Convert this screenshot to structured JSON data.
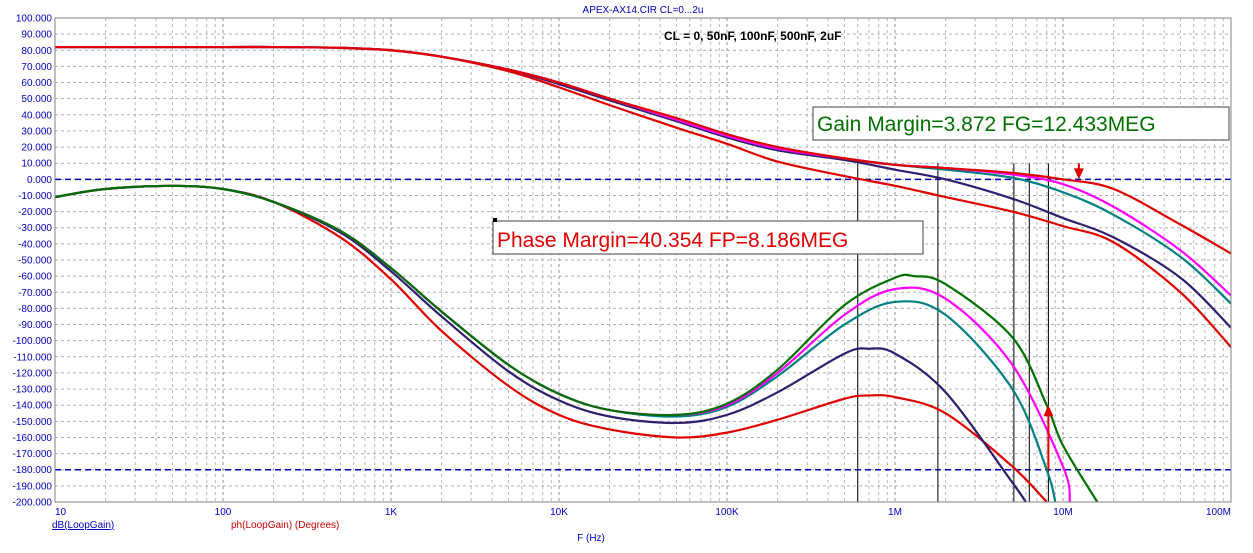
{
  "window": {
    "title": "APEX-AX14.CIR CL=0...2u"
  },
  "chart_data": {
    "type": "line",
    "title": "APEX-AX14.CIR CL=0...2u",
    "subtitle": "CL = 0, 50nF, 100nF, 500nF, 2uF",
    "xlabel": "F (Hz)",
    "x_scale": "log",
    "xlim": [
      10,
      100000000
    ],
    "ylim": [
      -200,
      100
    ],
    "x_ticks": [
      {
        "v": 10,
        "label": "10"
      },
      {
        "v": 100,
        "label": "100"
      },
      {
        "v": 1000,
        "label": "1K"
      },
      {
        "v": 10000,
        "label": "10K"
      },
      {
        "v": 100000,
        "label": "100K"
      },
      {
        "v": 1000000,
        "label": "1M"
      },
      {
        "v": 10000000,
        "label": "10M"
      },
      {
        "v": 100000000,
        "label": "100M"
      }
    ],
    "y_ticks": [
      {
        "v": 100,
        "label": "100.000"
      },
      {
        "v": 90,
        "label": "90.000"
      },
      {
        "v": 80,
        "label": "80.000"
      },
      {
        "v": 70,
        "label": "70.000"
      },
      {
        "v": 60,
        "label": "60.000"
      },
      {
        "v": 50,
        "label": "50.000"
      },
      {
        "v": 40,
        "label": "40.000"
      },
      {
        "v": 30,
        "label": "30.000"
      },
      {
        "v": 20,
        "label": "20.000"
      },
      {
        "v": 10,
        "label": "10.000"
      },
      {
        "v": 0,
        "label": "0.000"
      },
      {
        "v": -10,
        "label": "-10.000"
      },
      {
        "v": -20,
        "label": "-20.000"
      },
      {
        "v": -30,
        "label": "-30.000"
      },
      {
        "v": -40,
        "label": "-40.000"
      },
      {
        "v": -50,
        "label": "-50.000"
      },
      {
        "v": -60,
        "label": "-60.000"
      },
      {
        "v": -70,
        "label": "-70.000"
      },
      {
        "v": -80,
        "label": "-80.000"
      },
      {
        "v": -90,
        "label": "-90.000"
      },
      {
        "v": -100,
        "label": "-100.000"
      },
      {
        "v": -110,
        "label": "-110.000"
      },
      {
        "v": -120,
        "label": "-120.000"
      },
      {
        "v": -130,
        "label": "-130.000"
      },
      {
        "v": -140,
        "label": "-140.000"
      },
      {
        "v": -150,
        "label": "-150.000"
      },
      {
        "v": -160,
        "label": "-160.000"
      },
      {
        "v": -170,
        "label": "-170.000"
      },
      {
        "v": -180,
        "label": "-180.000"
      },
      {
        "v": -190,
        "label": "-190.000"
      },
      {
        "v": -200,
        "label": "-200.000"
      }
    ],
    "grid": true,
    "legend": [
      {
        "label": "dB(LoopGain)",
        "color": "#0000c0"
      },
      {
        "label": "ph(LoopGain) (Degrees)",
        "color": "#cc0000"
      }
    ],
    "reference_lines": [
      {
        "y": 0,
        "color": "#0000c0",
        "style": "dashed"
      },
      {
        "y": -180,
        "color": "#0000c0",
        "style": "dashed"
      }
    ],
    "marker_lines_x": [
      600000,
      1800000,
      5100000,
      6300000,
      8186000
    ],
    "annotations": [
      {
        "text": "Gain Margin=3.872 FG=12.433MEG",
        "color": "#007000"
      },
      {
        "text": "Phase Margin=40.354 FP=8.186MEG",
        "color": "#e00000"
      }
    ],
    "arrows": [
      {
        "x": 12433000,
        "y_from": 10,
        "y_to": 0,
        "color": "#e00000"
      },
      {
        "x": 8186000,
        "y_from": -180,
        "y_to": -140,
        "color": "#e00000"
      }
    ],
    "series": [
      {
        "group": "dB",
        "color": "#e00000",
        "points": [
          [
            10,
            82
          ],
          [
            100,
            82
          ],
          [
            200,
            82
          ],
          [
            500,
            81.5
          ],
          [
            1000,
            80
          ],
          [
            2000,
            76
          ],
          [
            5000,
            67
          ],
          [
            10000,
            57
          ],
          [
            20000,
            46
          ],
          [
            50000,
            32
          ],
          [
            100000,
            22
          ],
          [
            200000,
            11
          ],
          [
            500000,
            2
          ],
          [
            1000000,
            -4
          ],
          [
            2000000,
            -11
          ],
          [
            5000000,
            -20
          ],
          [
            10000000,
            -29
          ],
          [
            20000000,
            -39
          ],
          [
            50000000,
            -70
          ],
          [
            100000000,
            -104
          ]
        ]
      },
      {
        "group": "dB",
        "color": "#301e6e",
        "points": [
          [
            10,
            82
          ],
          [
            100,
            82
          ],
          [
            200,
            82
          ],
          [
            500,
            81.5
          ],
          [
            1000,
            80
          ],
          [
            2000,
            76
          ],
          [
            5000,
            68
          ],
          [
            10000,
            59
          ],
          [
            20000,
            49
          ],
          [
            50000,
            36
          ],
          [
            100000,
            26
          ],
          [
            200000,
            18
          ],
          [
            500000,
            12
          ],
          [
            1000000,
            6
          ],
          [
            2000000,
            0
          ],
          [
            5000000,
            -12
          ],
          [
            10000000,
            -24
          ],
          [
            20000000,
            -36
          ],
          [
            50000000,
            -61
          ],
          [
            100000000,
            -92
          ]
        ]
      },
      {
        "group": "dB",
        "color": "#008080",
        "points": [
          [
            10,
            82
          ],
          [
            100,
            82
          ],
          [
            200,
            82
          ],
          [
            500,
            81.5
          ],
          [
            1000,
            80
          ],
          [
            2000,
            76
          ],
          [
            5000,
            68
          ],
          [
            10000,
            60
          ],
          [
            20000,
            50
          ],
          [
            50000,
            37
          ],
          [
            100000,
            27
          ],
          [
            200000,
            19
          ],
          [
            500000,
            13
          ],
          [
            1000000,
            9
          ],
          [
            2000000,
            6
          ],
          [
            5000000,
            1
          ],
          [
            10000000,
            -8
          ],
          [
            20000000,
            -22
          ],
          [
            50000000,
            -48
          ],
          [
            100000000,
            -77
          ]
        ]
      },
      {
        "group": "dB",
        "color": "#ff00ff",
        "points": [
          [
            10,
            82
          ],
          [
            100,
            82
          ],
          [
            200,
            82
          ],
          [
            500,
            81.5
          ],
          [
            1000,
            80
          ],
          [
            2000,
            76
          ],
          [
            5000,
            68
          ],
          [
            10000,
            60
          ],
          [
            20000,
            50
          ],
          [
            50000,
            37
          ],
          [
            100000,
            27
          ],
          [
            200000,
            19
          ],
          [
            500000,
            13
          ],
          [
            1000000,
            9
          ],
          [
            2000000,
            7
          ],
          [
            5000000,
            3
          ],
          [
            10000000,
            -3
          ],
          [
            20000000,
            -17
          ],
          [
            50000000,
            -44
          ],
          [
            100000000,
            -72
          ]
        ]
      },
      {
        "group": "dB",
        "color": "#e00000",
        "points": [
          [
            10,
            82
          ],
          [
            100,
            82
          ],
          [
            200,
            82
          ],
          [
            500,
            81.5
          ],
          [
            1000,
            80
          ],
          [
            2000,
            76
          ],
          [
            5000,
            68
          ],
          [
            10000,
            60
          ],
          [
            20000,
            50
          ],
          [
            50000,
            38
          ],
          [
            100000,
            28
          ],
          [
            200000,
            20
          ],
          [
            500000,
            13
          ],
          [
            1000000,
            9
          ],
          [
            2000000,
            7
          ],
          [
            5000000,
            4
          ],
          [
            10000000,
            0
          ],
          [
            20000000,
            -6
          ],
          [
            50000000,
            -28
          ],
          [
            100000000,
            -46
          ]
        ]
      },
      {
        "group": "phase",
        "color": "#e00000",
        "points": [
          [
            10,
            -11
          ],
          [
            20,
            -6
          ],
          [
            50,
            -4
          ],
          [
            100,
            -6
          ],
          [
            200,
            -14
          ],
          [
            500,
            -36
          ],
          [
            1000,
            -62
          ],
          [
            2000,
            -94
          ],
          [
            5000,
            -128
          ],
          [
            10000,
            -146
          ],
          [
            20000,
            -155
          ],
          [
            50000,
            -160
          ],
          [
            100000,
            -157
          ],
          [
            200000,
            -149
          ],
          [
            500000,
            -136
          ],
          [
            700000,
            -134
          ],
          [
            1000000,
            -135
          ],
          [
            2000000,
            -145
          ],
          [
            5000000,
            -178
          ],
          [
            8000000,
            -200
          ]
        ]
      },
      {
        "group": "phase",
        "color": "#301e6e",
        "points": [
          [
            10,
            -11
          ],
          [
            20,
            -6
          ],
          [
            50,
            -4
          ],
          [
            100,
            -6
          ],
          [
            200,
            -14
          ],
          [
            500,
            -33
          ],
          [
            1000,
            -57
          ],
          [
            2000,
            -85
          ],
          [
            5000,
            -119
          ],
          [
            10000,
            -137
          ],
          [
            20000,
            -147
          ],
          [
            50000,
            -151
          ],
          [
            100000,
            -146
          ],
          [
            200000,
            -132
          ],
          [
            500000,
            -108
          ],
          [
            700000,
            -105
          ],
          [
            1000000,
            -108
          ],
          [
            2000000,
            -132
          ],
          [
            5000000,
            -188
          ],
          [
            6000000,
            -200
          ]
        ]
      },
      {
        "group": "phase",
        "color": "#008080",
        "points": [
          [
            10,
            -11
          ],
          [
            20,
            -6
          ],
          [
            50,
            -4
          ],
          [
            100,
            -6
          ],
          [
            200,
            -14
          ],
          [
            500,
            -32
          ],
          [
            1000,
            -55
          ],
          [
            2000,
            -82
          ],
          [
            5000,
            -115
          ],
          [
            10000,
            -133
          ],
          [
            20000,
            -143
          ],
          [
            50000,
            -147
          ],
          [
            100000,
            -141
          ],
          [
            200000,
            -122
          ],
          [
            500000,
            -90
          ],
          [
            1000000,
            -76
          ],
          [
            2000000,
            -84
          ],
          [
            5000000,
            -130
          ],
          [
            8000000,
            -180
          ],
          [
            9000000,
            -200
          ]
        ]
      },
      {
        "group": "phase",
        "color": "#ff00ff",
        "points": [
          [
            10,
            -11
          ],
          [
            20,
            -6
          ],
          [
            50,
            -4
          ],
          [
            100,
            -6
          ],
          [
            200,
            -14
          ],
          [
            500,
            -32
          ],
          [
            1000,
            -55
          ],
          [
            2000,
            -82
          ],
          [
            5000,
            -115
          ],
          [
            10000,
            -133
          ],
          [
            20000,
            -143
          ],
          [
            50000,
            -146
          ],
          [
            100000,
            -140
          ],
          [
            200000,
            -120
          ],
          [
            500000,
            -84
          ],
          [
            1000000,
            -68
          ],
          [
            2000000,
            -74
          ],
          [
            5000000,
            -115
          ],
          [
            10000000,
            -178
          ],
          [
            11000000,
            -200
          ]
        ]
      },
      {
        "group": "phase",
        "color": "#007000",
        "points": [
          [
            10,
            -11
          ],
          [
            20,
            -6
          ],
          [
            50,
            -4
          ],
          [
            100,
            -6
          ],
          [
            200,
            -14
          ],
          [
            500,
            -32
          ],
          [
            1000,
            -55
          ],
          [
            2000,
            -82
          ],
          [
            5000,
            -115
          ],
          [
            10000,
            -133
          ],
          [
            20000,
            -143
          ],
          [
            50000,
            -146
          ],
          [
            100000,
            -139
          ],
          [
            200000,
            -118
          ],
          [
            500000,
            -78
          ],
          [
            1000000,
            -61
          ],
          [
            1300000,
            -60
          ],
          [
            2000000,
            -65
          ],
          [
            5000000,
            -98
          ],
          [
            8000000,
            -140
          ],
          [
            10000000,
            -165
          ],
          [
            16000000,
            -200
          ]
        ]
      }
    ]
  }
}
